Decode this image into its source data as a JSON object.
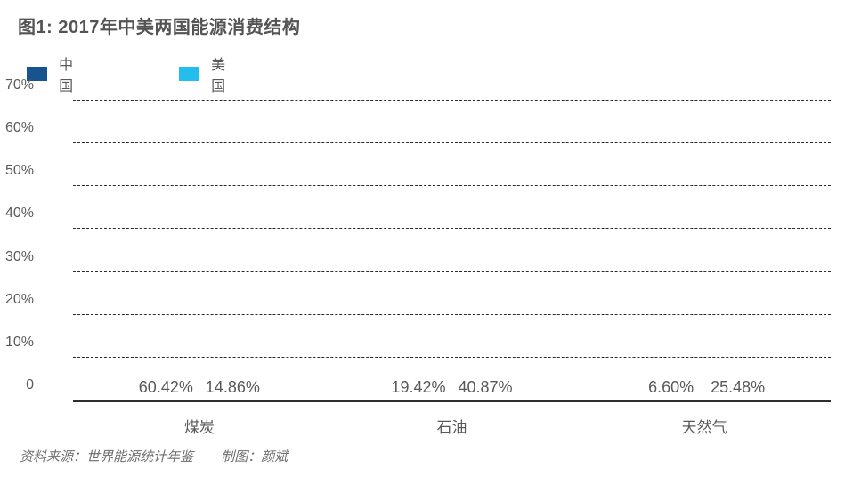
{
  "title": "图1: 2017年中美两国能源消费结构",
  "footer": {
    "source": "资料来源：世界能源统计年鉴",
    "credit": "制图：颜斌"
  },
  "colors": {
    "china": "#17538F",
    "usa": "#23BDEE",
    "text": "#595959"
  },
  "chart_data": {
    "type": "bar",
    "title": "图1: 2017年中美两国能源消费结构",
    "categories": [
      "煤炭",
      "石油",
      "天然气"
    ],
    "series": [
      {
        "name": "中国",
        "color": "#17538F",
        "values": [
          60.42,
          19.42,
          6.6
        ],
        "labels": [
          "60.42%",
          "19.42%",
          "6.60%"
        ]
      },
      {
        "name": "美国",
        "color": "#23BDEE",
        "values": [
          14.86,
          40.87,
          25.48
        ],
        "labels": [
          "14.86%",
          "40.87%",
          "25.48%"
        ]
      }
    ],
    "xlabel": "",
    "ylabel": "",
    "ylim": [
      0,
      70
    ],
    "ytick_step": 10,
    "ytick_labels": [
      "0",
      "10%",
      "20%",
      "30%",
      "40%",
      "50%",
      "60%",
      "70%"
    ],
    "grid": "horizontal-dashed",
    "legend_position": "top-left"
  }
}
